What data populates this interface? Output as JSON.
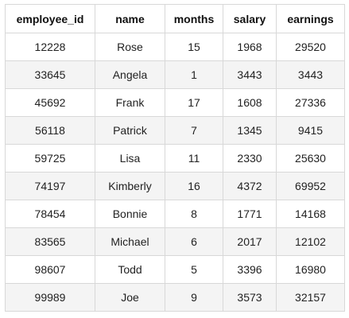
{
  "table": {
    "columns": [
      "employee_id",
      "name",
      "months",
      "salary",
      "earnings"
    ],
    "rows": [
      [
        "12228",
        "Rose",
        "15",
        "1968",
        "29520"
      ],
      [
        "33645",
        "Angela",
        "1",
        "3443",
        "3443"
      ],
      [
        "45692",
        "Frank",
        "17",
        "1608",
        "27336"
      ],
      [
        "56118",
        "Patrick",
        "7",
        "1345",
        "9415"
      ],
      [
        "59725",
        "Lisa",
        "11",
        "2330",
        "25630"
      ],
      [
        "74197",
        "Kimberly",
        "16",
        "4372",
        "69952"
      ],
      [
        "78454",
        "Bonnie",
        "8",
        "1771",
        "14168"
      ],
      [
        "83565",
        "Michael",
        "6",
        "2017",
        "12102"
      ],
      [
        "98607",
        "Todd",
        "5",
        "3396",
        "16980"
      ],
      [
        "99989",
        "Joe",
        "9",
        "3573",
        "32157"
      ]
    ]
  },
  "colors": {
    "border": "#d8d8d8",
    "stripe": "#f4f4f4",
    "text": "#222222"
  }
}
